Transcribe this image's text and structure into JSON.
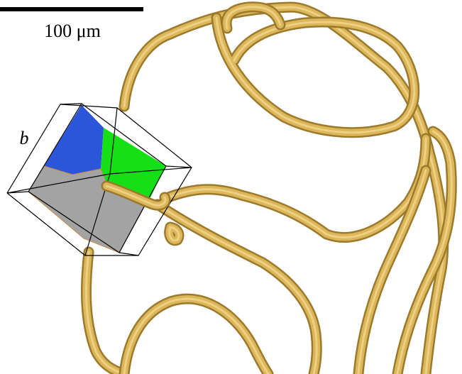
{
  "scale_bar": {
    "label": "100 μm"
  },
  "panel_label": "b"
}
